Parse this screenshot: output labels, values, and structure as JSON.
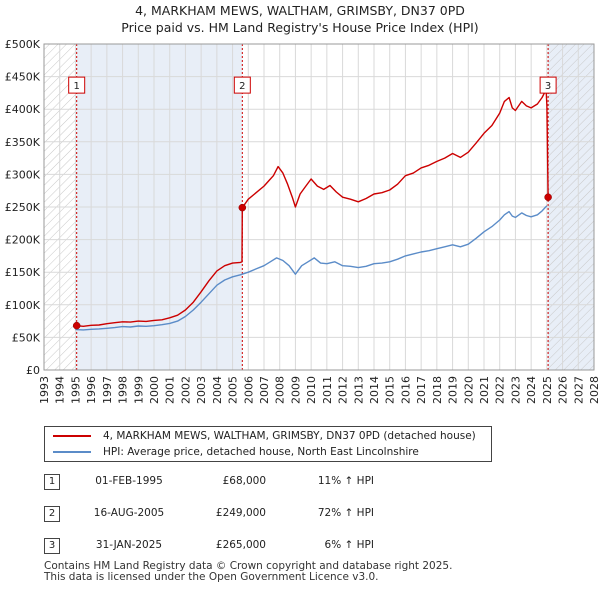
{
  "title": {
    "line1": "4, MARKHAM MEWS, WALTHAM, GRIMSBY, DN37 0PD",
    "line2": "Price paid vs. HM Land Registry's House Price Index (HPI)"
  },
  "colors": {
    "price_line": "#cc0000",
    "hpi_line": "#5b8cc8",
    "grid": "#d9d9d9",
    "shade": "#e8eef7",
    "marker_line": "#cc0000"
  },
  "chart_data": {
    "type": "line",
    "xlim": [
      1993,
      2028
    ],
    "ylim": [
      0,
      500000
    ],
    "x_ticks": [
      "1993",
      "1994",
      "1995",
      "1996",
      "1997",
      "1998",
      "1999",
      "2000",
      "2001",
      "2002",
      "2003",
      "2004",
      "2005",
      "2006",
      "2007",
      "2008",
      "2009",
      "2010",
      "2011",
      "2012",
      "2013",
      "2014",
      "2015",
      "2016",
      "2017",
      "2018",
      "2019",
      "2020",
      "2021",
      "2022",
      "2023",
      "2024",
      "2025",
      "2026",
      "2027",
      "2028"
    ],
    "y_ticks": [
      {
        "value": 0,
        "label": "£0"
      },
      {
        "value": 50000,
        "label": "£50K"
      },
      {
        "value": 100000,
        "label": "£100K"
      },
      {
        "value": 150000,
        "label": "£150K"
      },
      {
        "value": 200000,
        "label": "£200K"
      },
      {
        "value": 250000,
        "label": "£250K"
      },
      {
        "value": 300000,
        "label": "£300K"
      },
      {
        "value": 350000,
        "label": "£350K"
      },
      {
        "value": 400000,
        "label": "£400K"
      },
      {
        "value": 450000,
        "label": "£450K"
      },
      {
        "value": 500000,
        "label": "£500K"
      }
    ],
    "hatched_ranges": [
      [
        1993,
        1995.08
      ],
      [
        2025.08,
        2028
      ]
    ],
    "shaded_ranges": [
      [
        1995.08,
        2005.62
      ],
      [
        2025.08,
        2028
      ]
    ],
    "series": [
      {
        "name": "4, MARKHAM MEWS, WALTHAM, GRIMSBY, DN37 0PD (detached house)",
        "color": "#cc0000",
        "points": [
          [
            1995.08,
            68000
          ],
          [
            1995.5,
            67000
          ],
          [
            1996,
            68500
          ],
          [
            1996.5,
            69000
          ],
          [
            1997,
            71000
          ],
          [
            1997.5,
            72500
          ],
          [
            1998,
            74000
          ],
          [
            1998.5,
            73500
          ],
          [
            1999,
            75000
          ],
          [
            1999.5,
            74500
          ],
          [
            2000,
            76000
          ],
          [
            2000.5,
            77000
          ],
          [
            2001,
            80000
          ],
          [
            2001.5,
            84000
          ],
          [
            2002,
            92000
          ],
          [
            2002.5,
            104000
          ],
          [
            2003,
            120000
          ],
          [
            2003.5,
            137000
          ],
          [
            2004,
            152000
          ],
          [
            2004.5,
            160000
          ],
          [
            2005,
            164000
          ],
          [
            2005.5,
            165000
          ],
          [
            2005.6,
            166000
          ],
          [
            2005.62,
            249000
          ],
          [
            2006,
            262000
          ],
          [
            2006.5,
            272000
          ],
          [
            2007,
            282000
          ],
          [
            2007.3,
            290000
          ],
          [
            2007.6,
            298000
          ],
          [
            2007.9,
            312000
          ],
          [
            2008.2,
            302000
          ],
          [
            2008.5,
            285000
          ],
          [
            2008.8,
            265000
          ],
          [
            2009,
            250000
          ],
          [
            2009.3,
            270000
          ],
          [
            2009.6,
            280000
          ],
          [
            2010,
            293000
          ],
          [
            2010.4,
            282000
          ],
          [
            2010.8,
            277000
          ],
          [
            2011.2,
            283000
          ],
          [
            2011.6,
            273000
          ],
          [
            2012,
            265000
          ],
          [
            2012.5,
            262000
          ],
          [
            2013,
            258000
          ],
          [
            2013.5,
            263000
          ],
          [
            2014,
            270000
          ],
          [
            2014.5,
            272000
          ],
          [
            2015,
            276000
          ],
          [
            2015.5,
            285000
          ],
          [
            2016,
            298000
          ],
          [
            2016.5,
            302000
          ],
          [
            2017,
            310000
          ],
          [
            2017.5,
            314000
          ],
          [
            2018,
            320000
          ],
          [
            2018.5,
            325000
          ],
          [
            2019,
            332000
          ],
          [
            2019.5,
            326000
          ],
          [
            2020,
            334000
          ],
          [
            2020.5,
            348000
          ],
          [
            2021,
            363000
          ],
          [
            2021.5,
            375000
          ],
          [
            2022,
            394000
          ],
          [
            2022.3,
            412000
          ],
          [
            2022.6,
            418000
          ],
          [
            2022.8,
            402000
          ],
          [
            2023,
            398000
          ],
          [
            2023.4,
            412000
          ],
          [
            2023.7,
            405000
          ],
          [
            2024,
            402000
          ],
          [
            2024.4,
            408000
          ],
          [
            2024.7,
            418000
          ],
          [
            2024.95,
            430000
          ],
          [
            2025.0,
            405000
          ],
          [
            2025.08,
            265000
          ]
        ]
      },
      {
        "name": "HPI: Average price, detached house, North East Lincolnshire",
        "color": "#5b8cc8",
        "points": [
          [
            1995,
            62000
          ],
          [
            1995.5,
            61500
          ],
          [
            1996,
            62500
          ],
          [
            1996.5,
            63000
          ],
          [
            1997,
            64000
          ],
          [
            1997.5,
            65000
          ],
          [
            1998,
            66500
          ],
          [
            1998.5,
            66000
          ],
          [
            1999,
            67500
          ],
          [
            1999.5,
            67000
          ],
          [
            2000,
            68000
          ],
          [
            2000.5,
            69500
          ],
          [
            2001,
            71500
          ],
          [
            2001.5,
            75000
          ],
          [
            2002,
            82000
          ],
          [
            2002.5,
            92000
          ],
          [
            2003,
            104000
          ],
          [
            2003.5,
            117000
          ],
          [
            2004,
            130000
          ],
          [
            2004.5,
            138000
          ],
          [
            2005,
            143000
          ],
          [
            2005.5,
            146000
          ],
          [
            2006,
            150000
          ],
          [
            2006.5,
            155000
          ],
          [
            2007,
            160000
          ],
          [
            2007.4,
            166000
          ],
          [
            2007.8,
            172000
          ],
          [
            2008.2,
            168000
          ],
          [
            2008.6,
            160000
          ],
          [
            2009,
            147000
          ],
          [
            2009.4,
            160000
          ],
          [
            2009.8,
            166000
          ],
          [
            2010.2,
            172000
          ],
          [
            2010.6,
            164000
          ],
          [
            2011,
            163000
          ],
          [
            2011.5,
            166000
          ],
          [
            2012,
            160000
          ],
          [
            2012.5,
            159000
          ],
          [
            2013,
            157000
          ],
          [
            2013.5,
            159000
          ],
          [
            2014,
            163000
          ],
          [
            2014.5,
            164000
          ],
          [
            2015,
            166000
          ],
          [
            2015.5,
            170000
          ],
          [
            2016,
            175000
          ],
          [
            2016.5,
            178000
          ],
          [
            2017,
            181000
          ],
          [
            2017.5,
            183000
          ],
          [
            2018,
            186000
          ],
          [
            2018.5,
            189000
          ],
          [
            2019,
            192000
          ],
          [
            2019.5,
            189000
          ],
          [
            2020,
            193000
          ],
          [
            2020.5,
            202000
          ],
          [
            2021,
            212000
          ],
          [
            2021.5,
            220000
          ],
          [
            2022,
            230000
          ],
          [
            2022.3,
            238000
          ],
          [
            2022.6,
            243000
          ],
          [
            2022.8,
            236000
          ],
          [
            2023,
            234000
          ],
          [
            2023.4,
            241000
          ],
          [
            2023.7,
            237000
          ],
          [
            2024,
            235000
          ],
          [
            2024.4,
            238000
          ],
          [
            2024.7,
            244000
          ],
          [
            2025,
            252000
          ]
        ]
      }
    ],
    "sale_markers": [
      {
        "label": "1",
        "x": 1995.08,
        "y": 68000
      },
      {
        "label": "2",
        "x": 2005.62,
        "y": 249000
      },
      {
        "label": "3",
        "x": 2025.08,
        "y": 265000
      }
    ]
  },
  "legend": {
    "price_label": "4, MARKHAM MEWS, WALTHAM, GRIMSBY, DN37 0PD (detached house)",
    "hpi_label": "HPI: Average price, detached house, North East Lincolnshire"
  },
  "sales": [
    {
      "num": "1",
      "date": "01-FEB-1995",
      "price": "£68,000",
      "hpi": "11% ↑ HPI"
    },
    {
      "num": "2",
      "date": "16-AUG-2005",
      "price": "£249,000",
      "hpi": "72% ↑ HPI"
    },
    {
      "num": "3",
      "date": "31-JAN-2025",
      "price": "£265,000",
      "hpi": "6% ↑ HPI"
    }
  ],
  "footer": {
    "line1": "Contains HM Land Registry data © Crown copyright and database right 2025.",
    "line2": "This data is licensed under the Open Government Licence v3.0."
  }
}
